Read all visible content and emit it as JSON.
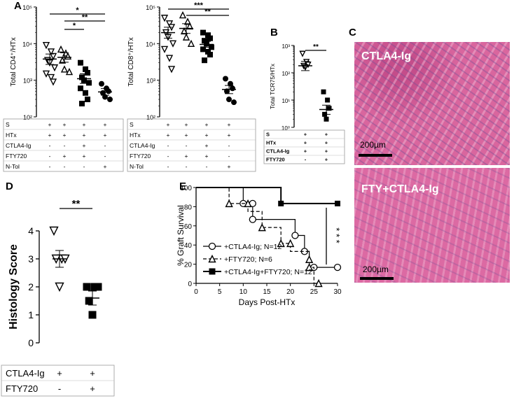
{
  "panel_letters": [
    "A",
    "B",
    "C",
    "D",
    "E"
  ],
  "colors": {
    "histo_pink": "#d9669e",
    "histo_light": "#f0b3d2",
    "histo_purple": "#6b4f95",
    "scale_bar": "#000000"
  },
  "chart_data": [
    {
      "id": "A-left",
      "type": "scatter",
      "ylabel": "Total CD4⁺/HTx",
      "yscale": "log",
      "ylim": [
        100,
        100000
      ],
      "yticks": [
        "10²",
        "10³",
        "10⁴",
        "10⁵"
      ],
      "groups": [
        {
          "marker": "triangle-down-open",
          "values": [
            9000,
            6000,
            4500,
            3500,
            3000,
            2200,
            1500,
            1200,
            900
          ],
          "mean": 3800,
          "sem_low": 2700,
          "sem_high": 5200
        },
        {
          "marker": "triangle-up-open",
          "values": [
            7000,
            5500,
            4500,
            3500,
            2000,
            1700
          ],
          "mean": 4200,
          "sem_low": 3100,
          "sem_high": 5600
        },
        {
          "marker": "square",
          "values": [
            3000,
            2000,
            1600,
            1200,
            1000,
            850,
            600,
            450,
            300,
            230
          ],
          "mean": 1100,
          "sem_low": 820,
          "sem_high": 1500
        },
        {
          "marker": "circle",
          "values": [
            800,
            600,
            500,
            450,
            350,
            300
          ],
          "mean": 480,
          "sem_low": 390,
          "sem_high": 590
        }
      ],
      "significance": [
        [
          "1",
          "4",
          "*"
        ],
        [
          "2",
          "4",
          "**"
        ],
        [
          "2",
          "3",
          "*"
        ]
      ],
      "table": {
        "rows": [
          {
            "label": "S",
            "cells": [
              "+",
              "+",
              "+",
              "+"
            ]
          },
          {
            "label": "HTx",
            "cells": [
              "+",
              "+",
              "+",
              "+"
            ]
          },
          {
            "label": "CTLA4-Ig",
            "cells": [
              "-",
              "-",
              "+",
              "-"
            ]
          },
          {
            "label": "FTY720",
            "cells": [
              "-",
              "+",
              "+",
              "-"
            ]
          },
          {
            "label": "N-Tol",
            "cells": [
              "-",
              "-",
              "-",
              "+"
            ]
          }
        ]
      }
    },
    {
      "id": "A-right",
      "type": "scatter",
      "ylabel": "Total CD8⁺/HTx",
      "yscale": "log",
      "ylim": [
        100,
        100000
      ],
      "yticks": [
        "10²",
        "10³",
        "10⁴",
        "10⁵"
      ],
      "groups": [
        {
          "marker": "triangle-down-open",
          "values": [
            50000,
            35000,
            28000,
            20000,
            15000,
            10000,
            7000,
            4000,
            2000
          ],
          "mean": 20000,
          "sem_low": 14000,
          "sem_high": 28000
        },
        {
          "marker": "triangle-up-open",
          "values": [
            60000,
            40000,
            30000,
            22000,
            15000,
            10000
          ],
          "mean": 26000,
          "sem_low": 19000,
          "sem_high": 35000
        },
        {
          "marker": "square",
          "values": [
            20000,
            17000,
            14000,
            12000,
            10000,
            8000,
            7000,
            6000,
            5000,
            3500
          ],
          "mean": 9500,
          "sem_low": 8000,
          "sem_high": 11500
        },
        {
          "marker": "circle",
          "values": [
            1100,
            800,
            600,
            500,
            300,
            250
          ],
          "mean": 560,
          "sem_low": 430,
          "sem_high": 720
        }
      ],
      "significance": [
        [
          "1",
          "4",
          "***"
        ],
        [
          "2",
          "4",
          "**"
        ]
      ],
      "table": {
        "rows": [
          {
            "label": "S",
            "cells": [
              "+",
              "+",
              "+",
              "+"
            ]
          },
          {
            "label": "HTx",
            "cells": [
              "+",
              "+",
              "+",
              "+"
            ]
          },
          {
            "label": "CTLA4-Ig",
            "cells": [
              "-",
              "-",
              "+",
              "-"
            ]
          },
          {
            "label": "FTY720",
            "cells": [
              "-",
              "+",
              "+",
              "-"
            ]
          },
          {
            "label": "N-Tol",
            "cells": [
              "-",
              "-",
              "-",
              "+"
            ]
          }
        ]
      }
    },
    {
      "id": "B",
      "type": "scatter",
      "ylabel": "Total TCR75/HTx",
      "yscale": "log",
      "ylim": [
        1,
        1000
      ],
      "yticks": [
        "10⁰",
        "10¹",
        "10²",
        "10³"
      ],
      "groups": [
        {
          "marker": "triangle-down-open",
          "values": [
            500,
            250,
            200,
            180,
            160
          ],
          "mean": 180,
          "sem_low": 120,
          "sem_high": 260
        },
        {
          "marker": "square",
          "values": [
            20,
            10,
            5,
            3,
            2
          ],
          "mean": 4.5,
          "sem_low": 3,
          "sem_high": 6.5
        }
      ],
      "significance": [
        [
          "1",
          "2",
          "**"
        ]
      ],
      "table": {
        "rows": [
          {
            "label": "S",
            "cells": [
              "+",
              "+"
            ]
          },
          {
            "label": "HTx",
            "cells": [
              "+",
              "+"
            ]
          },
          {
            "label": "CTLA4-Ig",
            "cells": [
              "+",
              "+"
            ]
          },
          {
            "label": "FTY720",
            "cells": [
              "-",
              "+"
            ]
          }
        ]
      }
    },
    {
      "id": "D",
      "type": "scatter",
      "ylabel": "Histology Score",
      "ylim": [
        0,
        4
      ],
      "groups": [
        {
          "marker": "triangle-down-open",
          "values": [
            4,
            3,
            3,
            3,
            2
          ],
          "mean": 3,
          "sem_low": 2.7,
          "sem_high": 3.3
        },
        {
          "marker": "square",
          "values": [
            2,
            2,
            2,
            1.5,
            1
          ],
          "mean": 1.6,
          "sem_low": 1.35,
          "sem_high": 1.85
        }
      ],
      "significance": [
        [
          "1",
          "2",
          "**"
        ]
      ],
      "table": {
        "rows": [
          {
            "label": "CTLA4-Ig",
            "cells": [
              "+",
              "+"
            ]
          },
          {
            "label": "FTY720",
            "cells": [
              "-",
              "+"
            ]
          }
        ]
      }
    },
    {
      "id": "E",
      "type": "line",
      "xlabel": "Days Post-HTx",
      "ylabel": "% Graft Survival",
      "xlim": [
        0,
        30
      ],
      "ylim": [
        0,
        100
      ],
      "xticks": [
        0,
        5,
        10,
        15,
        20,
        25,
        30
      ],
      "yticks": [
        0,
        20,
        40,
        60,
        80,
        100
      ],
      "significance_label": "* * *",
      "series": [
        {
          "name": "+CTLA4-Ig; N=12",
          "marker": "circle-open",
          "dash": false,
          "steps": [
            [
              0,
              100
            ],
            [
              10,
              100
            ],
            [
              10,
              83.3
            ],
            [
              12,
              83.3
            ],
            [
              12,
              66.7
            ],
            [
              21,
              66.7
            ],
            [
              21,
              50
            ],
            [
              23,
              50
            ],
            [
              23,
              33.3
            ],
            [
              24,
              33.3
            ],
            [
              24,
              16.7
            ],
            [
              30,
              16.7
            ]
          ],
          "points": [
            [
              10,
              83.3
            ],
            [
              12,
              83.3
            ],
            [
              12,
              66.7
            ],
            [
              21,
              50
            ],
            [
              23,
              33.3
            ],
            [
              25,
              16.7
            ],
            [
              30,
              16.7
            ]
          ]
        },
        {
          "name": "+FTY720; N=6",
          "marker": "triangle-up-open",
          "dash": true,
          "steps": [
            [
              0,
              100
            ],
            [
              7,
              100
            ],
            [
              7,
              83.3
            ],
            [
              11,
              83.3
            ],
            [
              11,
              75
            ],
            [
              14,
              75
            ],
            [
              14,
              58.3
            ],
            [
              18,
              58.3
            ],
            [
              18,
              41.7
            ],
            [
              20,
              41.7
            ],
            [
              20,
              33.3
            ],
            [
              24,
              33.3
            ],
            [
              24,
              16.7
            ],
            [
              25,
              16.7
            ],
            [
              25,
              0
            ],
            [
              26,
              0
            ]
          ],
          "points": [
            [
              7,
              83.3
            ],
            [
              11,
              83.3
            ],
            [
              14,
              58.3
            ],
            [
              18,
              41.7
            ],
            [
              20,
              41.7
            ],
            [
              24,
              25
            ],
            [
              24,
              16.7
            ],
            [
              26,
              0
            ]
          ]
        },
        {
          "name": "+CTLA4-Ig+FTY720; N=12",
          "marker": "square",
          "dash": false,
          "steps": [
            [
              0,
              100
            ],
            [
              18,
              100
            ],
            [
              18,
              83.3
            ],
            [
              30,
              83.3
            ]
          ],
          "points": [
            [
              18,
              83.3
            ],
            [
              30,
              83.3
            ]
          ]
        }
      ]
    }
  ],
  "histology": [
    {
      "label": "CTLA4-Ig",
      "scale": "200µm"
    },
    {
      "label": "FTY+CTLA4-Ig",
      "scale": "200µm"
    }
  ]
}
